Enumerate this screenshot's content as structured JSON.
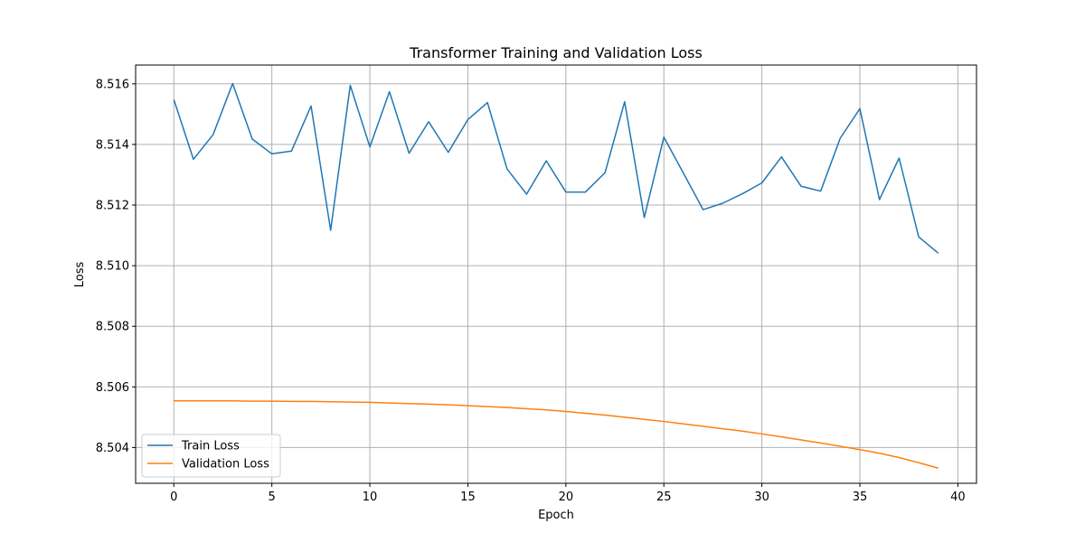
{
  "chart_data": {
    "type": "line",
    "title": "Transformer Training and Validation Loss",
    "xlabel": "Epoch",
    "ylabel": "Loss",
    "xlim": [
      -1.95,
      40.95
    ],
    "ylim": [
      8.50282,
      8.51662
    ],
    "x_ticks": [
      0,
      5,
      10,
      15,
      20,
      25,
      30,
      35,
      40
    ],
    "y_ticks": [
      8.504,
      8.506,
      8.508,
      8.51,
      8.512,
      8.514,
      8.516
    ],
    "y_tick_labels": [
      "8.504",
      "8.506",
      "8.508",
      "8.510",
      "8.512",
      "8.514",
      "8.516"
    ],
    "grid": true,
    "legend_position": "lower-left",
    "x": [
      0,
      1,
      2,
      3,
      4,
      5,
      6,
      7,
      8,
      9,
      10,
      11,
      12,
      13,
      14,
      15,
      16,
      17,
      18,
      19,
      20,
      21,
      22,
      23,
      24,
      25,
      26,
      27,
      28,
      29,
      30,
      31,
      32,
      33,
      34,
      35,
      36,
      37,
      38,
      39
    ],
    "series": [
      {
        "name": "Train Loss",
        "color": "#1f77b4",
        "values": [
          8.51548,
          8.51351,
          8.51432,
          8.51601,
          8.51418,
          8.51369,
          8.51378,
          8.51527,
          8.51117,
          8.51595,
          8.51392,
          8.51574,
          8.51371,
          8.51475,
          8.51374,
          8.51482,
          8.51538,
          8.51319,
          8.51236,
          8.51346,
          8.51243,
          8.51243,
          8.51307,
          8.51541,
          8.51159,
          8.51424,
          8.51305,
          8.51185,
          8.51206,
          8.51237,
          8.51273,
          8.51359,
          8.51262,
          8.51246,
          8.51421,
          8.51518,
          8.51218,
          8.51355,
          8.51095,
          8.51041
        ]
      },
      {
        "name": "Validation Loss",
        "color": "#ff7f0e",
        "values": [
          8.50554,
          8.50554,
          8.50554,
          8.50554,
          8.50553,
          8.50553,
          8.50552,
          8.50552,
          8.50551,
          8.5055,
          8.50549,
          8.50547,
          8.50545,
          8.50543,
          8.50541,
          8.50538,
          8.50535,
          8.50532,
          8.50528,
          8.50524,
          8.50519,
          8.50513,
          8.50507,
          8.505,
          8.50493,
          8.50486,
          8.50478,
          8.5047,
          8.50462,
          8.50454,
          8.50445,
          8.50435,
          8.50425,
          8.50415,
          8.50404,
          8.50393,
          8.50381,
          8.50367,
          8.5035,
          8.50332
        ]
      }
    ]
  }
}
